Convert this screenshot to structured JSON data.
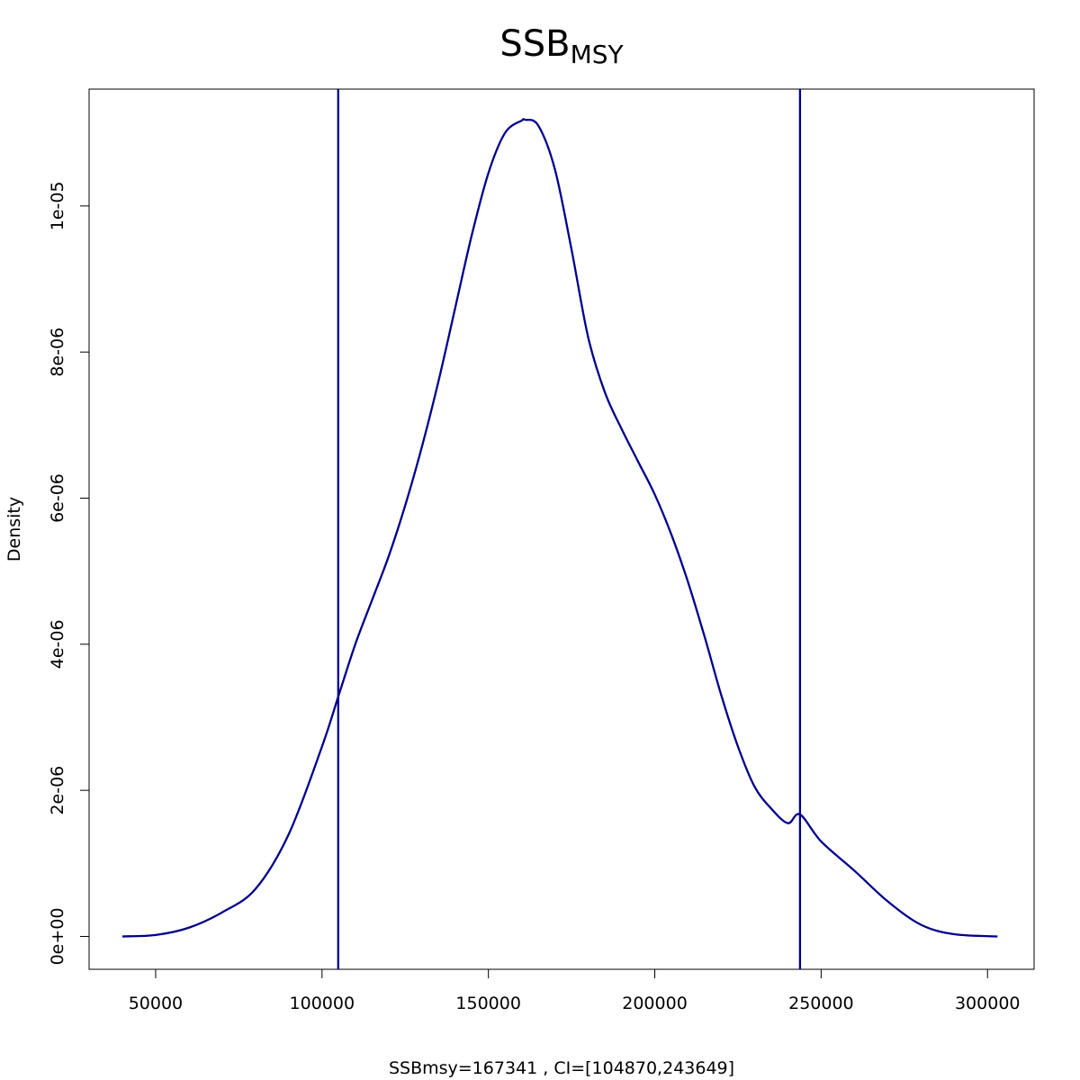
{
  "chart_data": {
    "type": "line",
    "title": "SSB",
    "title_subscript": "MSY",
    "xlabel": "SSBmsy=167341 , CI=[104870,243649]",
    "ylabel": "Density",
    "xlim": [
      30000,
      314000
    ],
    "ylim": [
      -4.5e-07,
      1.16e-05
    ],
    "x_ticks": [
      50000,
      100000,
      150000,
      200000,
      250000,
      300000
    ],
    "x_tick_labels": [
      "50000",
      "100000",
      "150000",
      "200000",
      "250000",
      "300000"
    ],
    "y_ticks": [
      0,
      2e-06,
      4e-06,
      6e-06,
      8e-06,
      1e-05
    ],
    "y_tick_labels": [
      "0e+00",
      "2e-06",
      "4e-06",
      "6e-06",
      "8e-06",
      "1e-05"
    ],
    "grid": false,
    "color": "#00008B",
    "vlines": [
      104870,
      243649
    ],
    "series": [
      {
        "x": [
          40000,
          50000,
          60000,
          70000,
          80000,
          90000,
          100000,
          105000,
          110000,
          115000,
          120000,
          125000,
          130000,
          135000,
          140000,
          145000,
          150000,
          155000,
          160000,
          161000,
          165000,
          170000,
          175000,
          180000,
          185000,
          190000,
          195000,
          200000,
          205000,
          210000,
          215000,
          220000,
          225000,
          230000,
          235000,
          240000,
          243649,
          250000,
          260000,
          270000,
          280000,
          290000,
          303000
        ],
        "y": [
          0,
          2e-08,
          1.2e-07,
          3.3e-07,
          6.5e-07,
          1.4e-06,
          2.6e-06,
          3.3e-06,
          4e-06,
          4.6e-06,
          5.2e-06,
          5.9e-06,
          6.7e-06,
          7.6e-06,
          8.6e-06,
          9.6e-06,
          1.045e-05,
          1.1e-05,
          1.117e-05,
          1.118e-05,
          1.11e-05,
          1.05e-05,
          9.4e-06,
          8.2e-06,
          7.45e-06,
          6.95e-06,
          6.5e-06,
          6.05e-06,
          5.5e-06,
          4.85e-06,
          4.1e-06,
          3.3e-06,
          2.6e-06,
          2.05e-06,
          1.75e-06,
          1.55e-06,
          1.67e-06,
          1.3e-06,
          9e-07,
          4.8e-07,
          1.6e-07,
          3e-08,
          0
        ]
      }
    ]
  }
}
